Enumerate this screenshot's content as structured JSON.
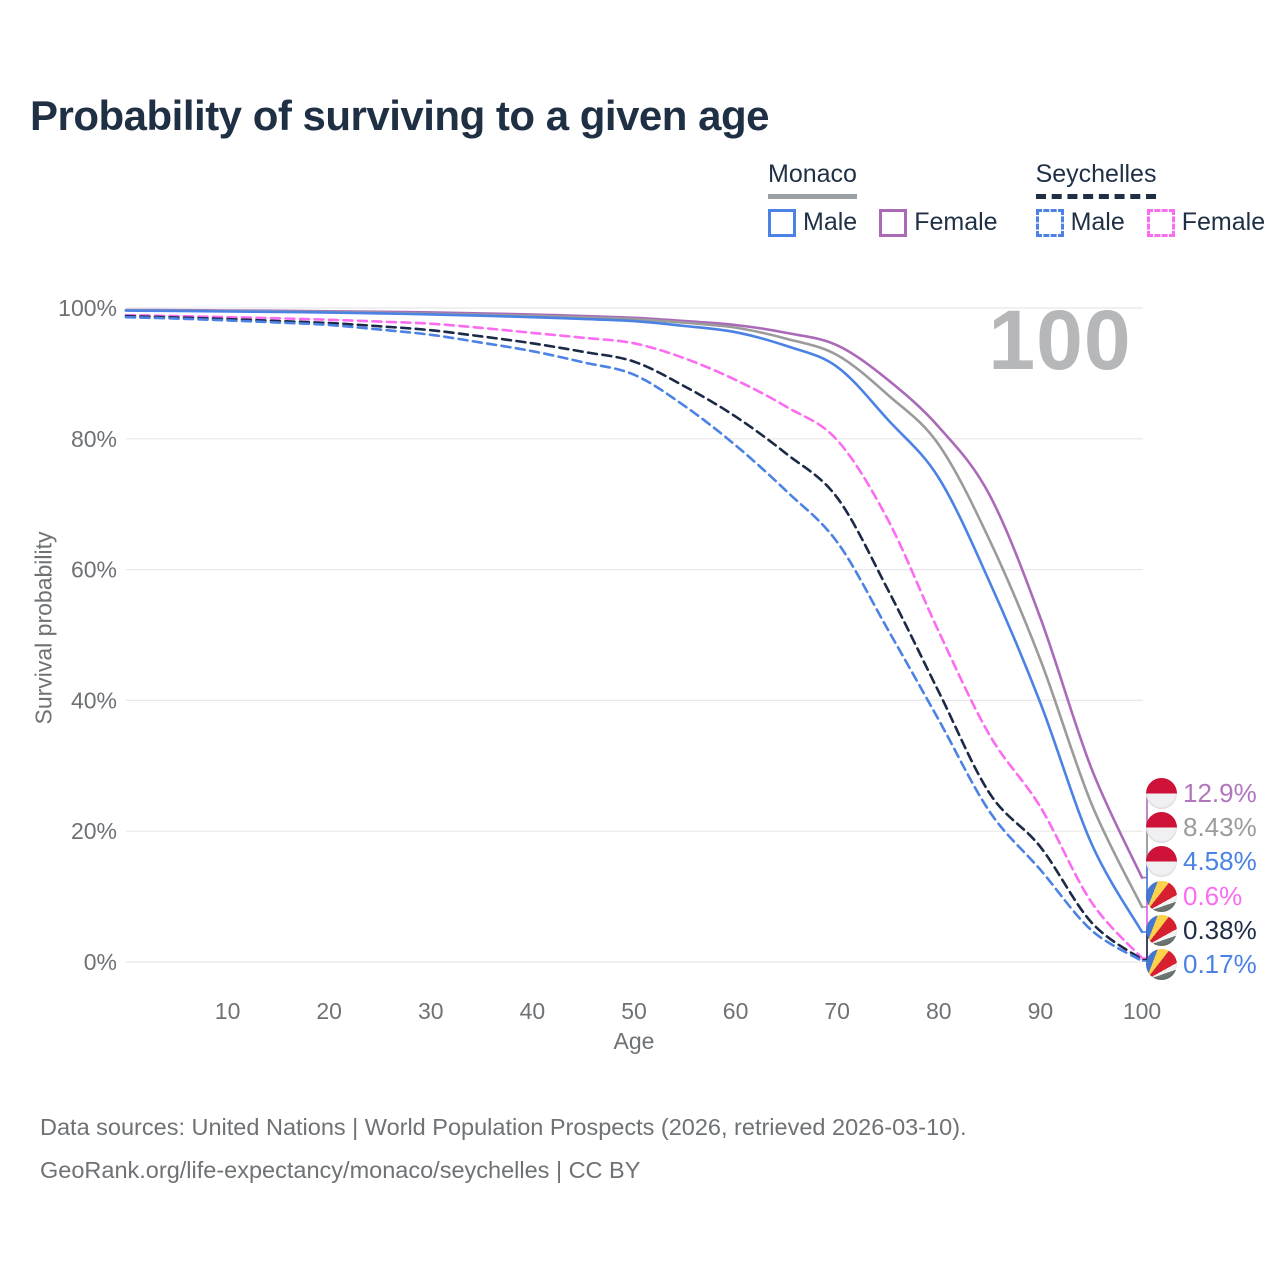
{
  "title": "Probability of surviving to a given age",
  "hover_watermark": "100",
  "legend": {
    "groups": [
      {
        "name": "Monaco",
        "line_style": "solid",
        "items": [
          {
            "label": "Male",
            "color": "#4b82e4"
          },
          {
            "label": "Female",
            "color": "#ab6ab8"
          }
        ]
      },
      {
        "name": "Seychelles",
        "line_style": "dashed",
        "items": [
          {
            "label": "Male",
            "color": "#4b82e4"
          },
          {
            "label": "Female",
            "color": "#fb6df0"
          }
        ]
      }
    ]
  },
  "chart_data": {
    "type": "line",
    "title": "Probability of surviving to a given age",
    "xlabel": "Age",
    "ylabel": "Survival probability",
    "xlim": [
      0,
      100
    ],
    "ylim": [
      0,
      100
    ],
    "grid": "horizontal",
    "legend_position": "top-right",
    "x_ticks": [
      10,
      20,
      30,
      40,
      50,
      60,
      70,
      80,
      90,
      100
    ],
    "y_tick_values": [
      0,
      20,
      40,
      60,
      80,
      100
    ],
    "y_tick_labels": [
      "0%",
      "20%",
      "40%",
      "60%",
      "80%",
      "100%"
    ],
    "x": [
      0,
      5,
      10,
      15,
      20,
      25,
      30,
      35,
      40,
      45,
      50,
      55,
      60,
      65,
      70,
      75,
      80,
      85,
      90,
      95,
      100
    ],
    "series": [
      {
        "id": "monaco-female",
        "country": "Monaco",
        "sex": "Female",
        "color": "#ab6ab8",
        "dashed": false,
        "end_label": "12.9%",
        "values": [
          99.7,
          99.66,
          99.62,
          99.57,
          99.5,
          99.42,
          99.32,
          99.17,
          99.0,
          98.78,
          98.5,
          98.0,
          97.4,
          96.2,
          94.3,
          89.0,
          81.8,
          71.4,
          52.6,
          29.7,
          12.9
        ]
      },
      {
        "id": "monaco-both-sexes",
        "country": "Monaco",
        "sex": "Both",
        "color": "#9b9b9b",
        "dashed": false,
        "end_label": "8.43%",
        "values": [
          99.65,
          99.61,
          99.55,
          99.48,
          99.4,
          99.28,
          99.12,
          98.97,
          98.8,
          98.57,
          98.3,
          97.75,
          97.0,
          95.3,
          92.8,
          86.7,
          79.1,
          64.5,
          46.2,
          24.3,
          8.43
        ]
      },
      {
        "id": "monaco-male",
        "country": "Monaco",
        "sex": "Male",
        "color": "#4b82e4",
        "dashed": false,
        "end_label": "4.58%",
        "values": [
          99.6,
          99.55,
          99.48,
          99.4,
          99.3,
          99.17,
          99.02,
          98.82,
          98.6,
          98.32,
          98.0,
          97.25,
          96.3,
          94.2,
          91.0,
          82.9,
          74.0,
          58.1,
          39.6,
          18.2,
          4.58
        ]
      },
      {
        "id": "seychelles-female",
        "country": "Seychelles",
        "sex": "Female",
        "color": "#fb6df0",
        "dashed": true,
        "end_label": "0.6%",
        "values": [
          98.9,
          98.76,
          98.6,
          98.42,
          98.2,
          97.92,
          97.6,
          96.95,
          96.2,
          95.45,
          94.6,
          92.3,
          89.0,
          84.9,
          79.8,
          67.6,
          50.5,
          34.7,
          23.7,
          9.2,
          0.6
        ]
      },
      {
        "id": "seychelles-both-sexes",
        "country": "Seychelles",
        "sex": "Both",
        "color": "#1b2a47",
        "dashed": true,
        "end_label": "0.38%",
        "values": [
          98.75,
          98.55,
          98.3,
          98.0,
          97.7,
          97.2,
          96.6,
          95.65,
          94.6,
          93.3,
          91.8,
          88.0,
          83.4,
          77.7,
          71.0,
          56.9,
          41.3,
          25.8,
          17.6,
          6.1,
          0.38
        ]
      },
      {
        "id": "seychelles-male",
        "country": "Seychelles",
        "sex": "Male",
        "color": "#4b82e4",
        "dashed": true,
        "end_label": "0.17%",
        "values": [
          98.6,
          98.38,
          98.1,
          97.77,
          97.4,
          96.7,
          95.9,
          94.7,
          93.4,
          91.7,
          89.8,
          85.0,
          79.0,
          72.0,
          64.2,
          50.8,
          37.0,
          23.0,
          14.1,
          4.9,
          0.17
        ]
      }
    ]
  },
  "end_labels": [
    {
      "value": "12.9%",
      "flag": "monaco",
      "color": "#b176bd"
    },
    {
      "value": "8.43%",
      "flag": "monaco",
      "color": "#9b9b9b"
    },
    {
      "value": "4.58%",
      "flag": "monaco",
      "color": "#4b82e4"
    },
    {
      "value": "0.6%",
      "flag": "seychelles",
      "color": "#fb6df0"
    },
    {
      "value": "0.38%",
      "flag": "seychelles",
      "color": "#1f2c45"
    },
    {
      "value": "0.17%",
      "flag": "seychelles",
      "color": "#4b82e4"
    }
  ],
  "footer": {
    "line1": "Data sources: United Nations | World Population Prospects (2026, retrieved 2026-03-10).",
    "line2": "GeoRank.org/life-expectancy/monaco/seychelles | CC BY"
  }
}
